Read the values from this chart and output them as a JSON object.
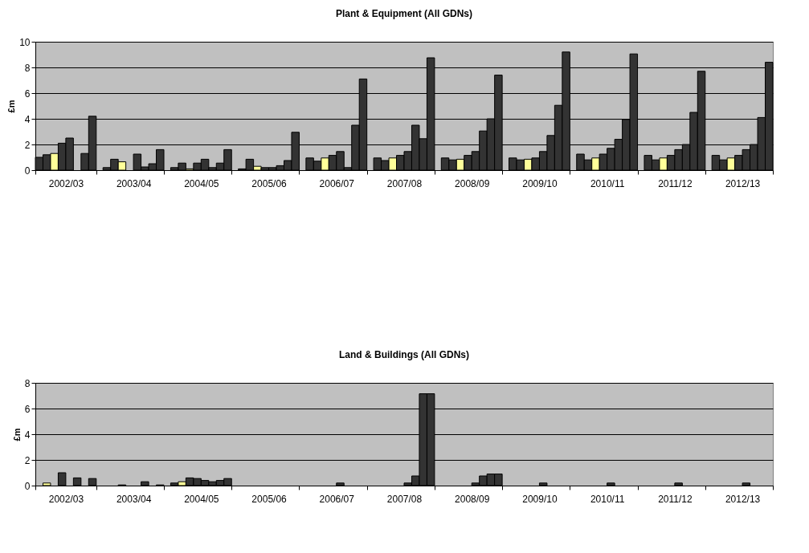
{
  "chart_data": [
    {
      "type": "bar",
      "title": "Plant & Equipment (All GDNs)",
      "ylabel": "£m",
      "categories": [
        "2002/03",
        "2003/04",
        "2004/05",
        "2005/06",
        "2006/07",
        "2007/08",
        "2008/09",
        "2009/10",
        "2010/11",
        "2011/12",
        "2012/13"
      ],
      "ylim": [
        0,
        10
      ],
      "yticks": [
        0,
        2,
        4,
        6,
        8,
        10
      ],
      "grid": "y",
      "series": [
        {
          "color": "#333333",
          "values": [
            1.0,
            0.2,
            0.2,
            0.1,
            0.95,
            0.95,
            0.95,
            0.95,
            1.25,
            1.15,
            1.15
          ]
        },
        {
          "color": "#333333",
          "values": [
            1.2,
            0.85,
            0.55,
            0.85,
            0.7,
            0.75,
            0.8,
            0.8,
            0.8,
            0.8,
            0.8
          ]
        },
        {
          "color": "#ffff99",
          "values": [
            1.3,
            0.65,
            0.1,
            0.3,
            0.95,
            0.95,
            0.85,
            0.85,
            0.95,
            0.95,
            0.95
          ]
        },
        {
          "color": "#333333",
          "values": [
            2.1,
            null,
            0.55,
            0.2,
            1.15,
            1.15,
            1.15,
            0.95,
            1.25,
            1.15,
            1.15
          ]
        },
        {
          "color": "#333333",
          "values": [
            2.5,
            1.25,
            0.85,
            0.2,
            1.45,
            1.45,
            1.45,
            1.45,
            1.7,
            1.6,
            1.6
          ]
        },
        {
          "color": "#333333",
          "values": [
            null,
            0.25,
            0.2,
            0.35,
            0.2,
            3.5,
            3.05,
            2.7,
            2.4,
            2.0,
            2.0
          ]
        },
        {
          "color": "#333333",
          "values": [
            1.3,
            0.5,
            0.55,
            0.75,
            3.5,
            2.45,
            4.0,
            5.05,
            3.95,
            4.5,
            4.1
          ]
        },
        {
          "color": "#333333",
          "values": [
            4.2,
            1.6,
            1.6,
            2.95,
            7.1,
            8.75,
            7.4,
            9.2,
            9.05,
            7.7,
            8.4
          ]
        }
      ]
    },
    {
      "type": "bar",
      "title": "Land & Buildings (All GDNs)",
      "ylabel": "£m",
      "categories": [
        "2002/03",
        "2003/04",
        "2004/05",
        "2005/06",
        "2006/07",
        "2007/08",
        "2008/09",
        "2009/10",
        "2010/11",
        "2011/12",
        "2012/13"
      ],
      "ylim": [
        0,
        8
      ],
      "yticks": [
        0,
        2,
        4,
        6,
        8
      ],
      "grid": "y",
      "series": [
        {
          "color": "#333333",
          "values": [
            null,
            null,
            0.2,
            null,
            null,
            null,
            null,
            null,
            null,
            null,
            null
          ]
        },
        {
          "color": "#ffff99",
          "values": [
            0.2,
            null,
            0.3,
            null,
            null,
            null,
            null,
            null,
            null,
            null,
            null
          ]
        },
        {
          "color": "#333333",
          "values": [
            null,
            0.05,
            0.6,
            null,
            null,
            null,
            null,
            null,
            null,
            null,
            null
          ]
        },
        {
          "color": "#333333",
          "values": [
            1.0,
            null,
            0.55,
            null,
            null,
            null,
            null,
            null,
            null,
            null,
            null
          ]
        },
        {
          "color": "#333333",
          "values": [
            null,
            null,
            0.4,
            null,
            0.2,
            0.2,
            0.2,
            0.2,
            0.2,
            0.2,
            0.2
          ]
        },
        {
          "color": "#333333",
          "values": [
            0.6,
            0.3,
            0.3,
            null,
            null,
            0.75,
            0.75,
            null,
            null,
            null,
            null
          ]
        },
        {
          "color": "#333333",
          "values": [
            null,
            null,
            0.4,
            null,
            null,
            7.15,
            0.9,
            null,
            null,
            null,
            null
          ]
        },
        {
          "color": "#333333",
          "values": [
            0.55,
            0.05,
            0.55,
            null,
            null,
            7.15,
            0.9,
            null,
            null,
            null,
            null
          ]
        }
      ]
    }
  ]
}
